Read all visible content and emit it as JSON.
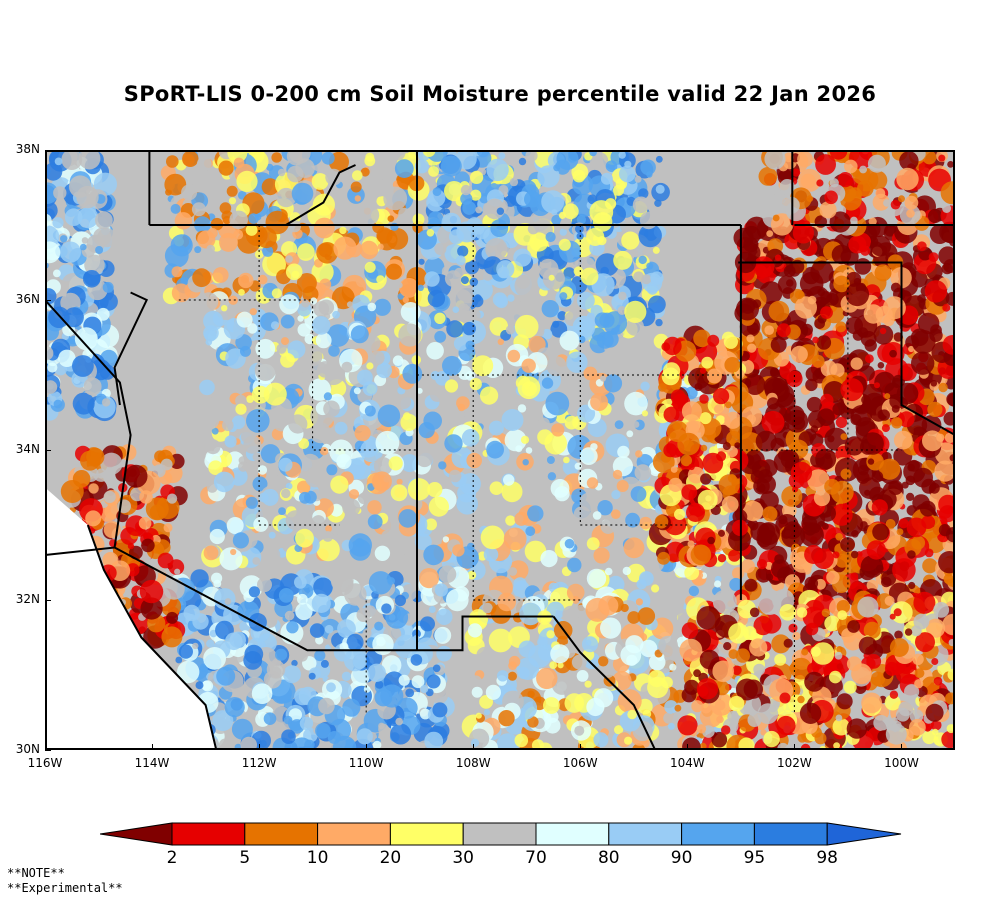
{
  "title": "SPoRT-LIS 0-200 cm Soil Moisture percentile valid 22 Jan 2026",
  "map": {
    "lat_labels": [
      "38N",
      "36N",
      "34N",
      "32N",
      "30N"
    ],
    "lon_labels": [
      "116W",
      "114W",
      "112W",
      "110W",
      "108W",
      "106W",
      "104W",
      "102W",
      "100W"
    ],
    "lon_range": [
      -116,
      -99
    ],
    "lat_range": [
      30,
      38
    ],
    "regions": [
      {
        "name": "nevada-utah-border",
        "category": "gray"
      },
      {
        "name": "southwest-arizona-wet",
        "category": "p90"
      },
      {
        "name": "western-texas-dry",
        "category": "p2"
      },
      {
        "name": "southwest-texas",
        "category": "p10"
      },
      {
        "name": "colorado-san-juans-wet",
        "category": "p95"
      }
    ],
    "land_color": "#c0c0c0",
    "ocean_color": "#ffffff"
  },
  "legend": {
    "labels": [
      "2",
      "5",
      "10",
      "20",
      "30",
      "70",
      "80",
      "90",
      "95",
      "98"
    ],
    "colors": [
      "#800000",
      "#e60000",
      "#e67300",
      "#ffaa66",
      "#ffff66",
      "#c0c0c0",
      "#e0ffff",
      "#99ccf5",
      "#55a5ee",
      "#2b7de0",
      "#1f65d8"
    ]
  },
  "notes": {
    "line1": "**NOTE**",
    "line2": "**Experimental**"
  }
}
